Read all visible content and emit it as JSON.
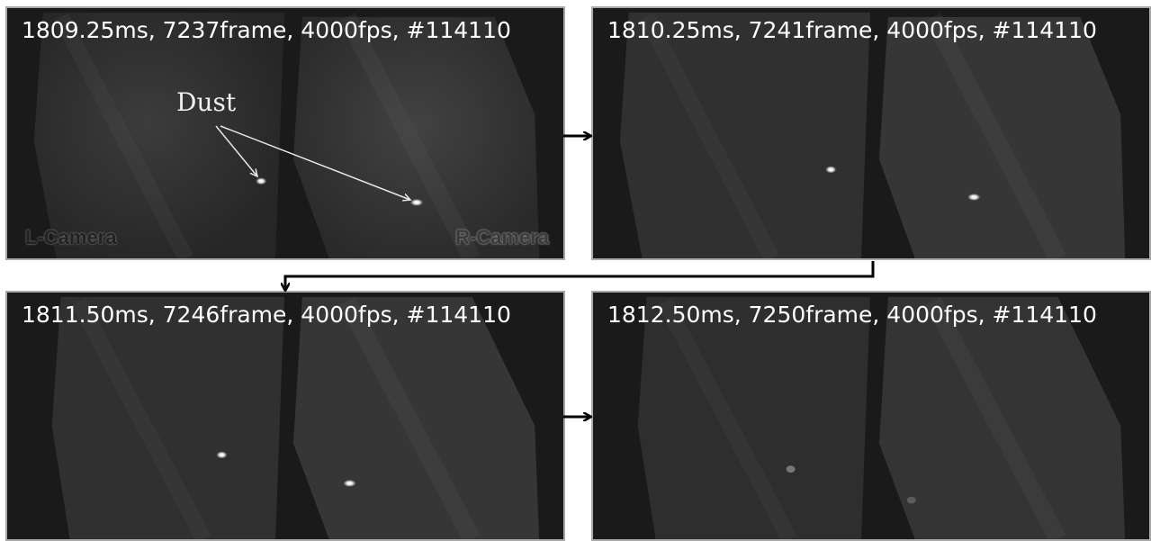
{
  "frames": [
    {
      "caption": "1809.25ms, 7237frame, 4000fps, #114110"
    },
    {
      "caption": "1810.25ms, 7241frame, 4000fps, #114110"
    },
    {
      "caption": "1811.50ms, 7246frame, 4000fps, #114110"
    },
    {
      "caption": "1812.50ms, 7250frame, 4000fps, #114110"
    }
  ],
  "annotations": {
    "dust_label": "Dust",
    "left_camera": "L-Camera",
    "right_camera": "R-Camera"
  }
}
